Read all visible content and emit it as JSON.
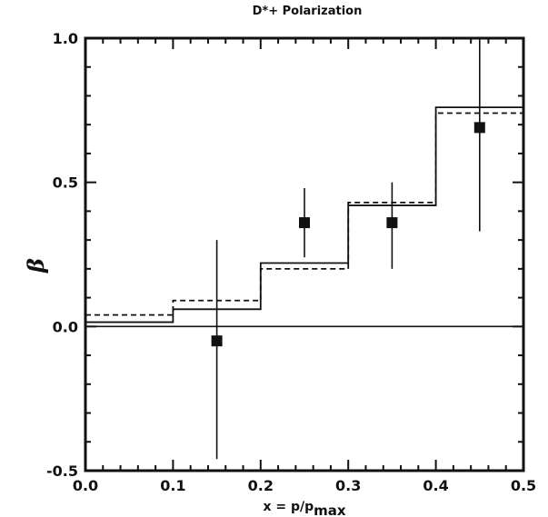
{
  "chart_data": {
    "type": "step",
    "title": "D*+ Polarization",
    "xlabel": "x = p/p_max",
    "ylabel": "β",
    "xlim": [
      0.0,
      0.5
    ],
    "ylim": [
      -0.5,
      1.0
    ],
    "x_ticks": [
      "0.0",
      "0.1",
      "0.2",
      "0.3",
      "0.4",
      "0.5"
    ],
    "y_ticks": [
      "-0.5",
      "0.0",
      "0.5",
      "1.0"
    ],
    "bins": [
      [
        0.0,
        0.1
      ],
      [
        0.1,
        0.2
      ],
      [
        0.2,
        0.3
      ],
      [
        0.3,
        0.4
      ],
      [
        0.4,
        0.5
      ]
    ],
    "series": [
      {
        "style": "solid",
        "values": [
          0.015,
          0.06,
          0.22,
          0.42,
          0.76
        ]
      },
      {
        "style": "dashed",
        "values": [
          0.04,
          0.09,
          0.2,
          0.43,
          0.74
        ]
      }
    ],
    "data_points": [
      {
        "x": 0.15,
        "y": -0.05,
        "err_low": -0.46,
        "err_high": 0.3
      },
      {
        "x": 0.25,
        "y": 0.36,
        "err_low": 0.24,
        "err_high": 0.48
      },
      {
        "x": 0.35,
        "y": 0.36,
        "err_low": 0.2,
        "err_high": 0.5
      },
      {
        "x": 0.45,
        "y": 0.69,
        "err_low": 0.33,
        "err_high": 1.0
      }
    ],
    "reference_line_y": 0.0,
    "grid": false
  }
}
